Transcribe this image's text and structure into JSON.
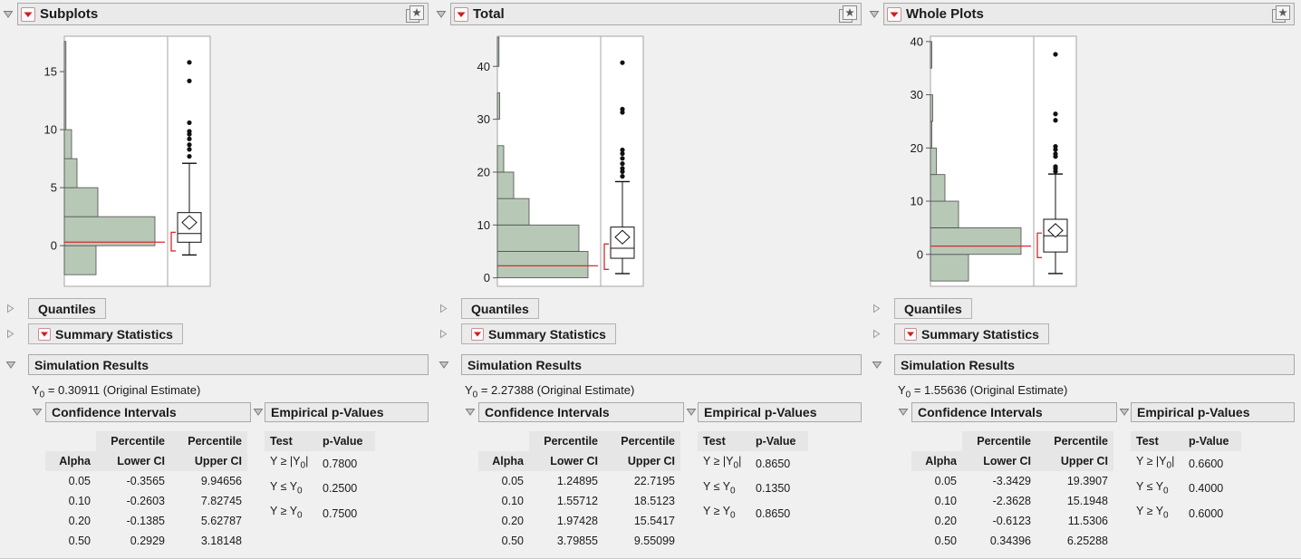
{
  "ui": {
    "y_symbol": "Y",
    "quantiles_label": "Quantiles",
    "summary_statistics_label": "Summary Statistics",
    "simulation_results_label": "Simulation Results",
    "confidence_intervals_label": "Confidence Intervals",
    "empirical_p_values_label": "Empirical p-Values",
    "ci_table": {
      "percentile_label": "Percentile",
      "alpha_header": "Alpha",
      "lower_header": "Lower CI",
      "upper_header": "Upper CI"
    },
    "p_table": {
      "test_header": "Test",
      "p_value_header": "p-Value"
    },
    "icons": {
      "red_triangle_menu": "red-triangle-menu-icon",
      "bookmark_star": "bookmark-star-icon",
      "disclosure_expanded": "chevron-down-icon",
      "disclosure_collapsed": "chevron-right-icon"
    }
  },
  "colors": {
    "background": "#f0f0f0",
    "header_bg": "#eaeaea",
    "header_border": "#a9a9a9",
    "hist_fill": "#b7c8b7",
    "hist_stroke": "#4d4d4d",
    "frame": "#a6a6a6",
    "reference_red": "#d92b2b",
    "box_stroke": "#111111",
    "red_triangle": "#cd1f1f"
  },
  "panels": [
    {
      "title": "Subplots",
      "y0_sub": "0",
      "y0_rest": " = 0.30911 (Original Estimate)",
      "ci_rows": [
        {
          "alpha": "0.05",
          "lower": "-0.3565",
          "upper": "9.94656"
        },
        {
          "alpha": "0.10",
          "lower": "-0.2603",
          "upper": "7.82745"
        },
        {
          "alpha": "0.20",
          "lower": "-0.1385",
          "upper": "5.62787"
        },
        {
          "alpha": "0.50",
          "lower": "0.2929",
          "upper": "3.18148"
        }
      ],
      "p_rows": [
        {
          "prefix": "Y ≥ |Y",
          "sub": "0",
          "suffix": "|",
          "value": "0.7800"
        },
        {
          "prefix": "Y ≤ Y",
          "sub": "0",
          "suffix": "",
          "value": "0.2500"
        },
        {
          "prefix": "Y ≥ Y",
          "sub": "0",
          "suffix": "",
          "value": "0.7500"
        }
      ]
    },
    {
      "title": "Total",
      "y0_sub": "0",
      "y0_rest": " = 2.27388 (Original Estimate)",
      "ci_rows": [
        {
          "alpha": "0.05",
          "lower": "1.24895",
          "upper": "22.7195"
        },
        {
          "alpha": "0.10",
          "lower": "1.55712",
          "upper": "18.5123"
        },
        {
          "alpha": "0.20",
          "lower": "1.97428",
          "upper": "15.5417"
        },
        {
          "alpha": "0.50",
          "lower": "3.79855",
          "upper": "9.55099"
        }
      ],
      "p_rows": [
        {
          "prefix": "Y ≥ |Y",
          "sub": "0",
          "suffix": "|",
          "value": "0.8650"
        },
        {
          "prefix": "Y ≤ Y",
          "sub": "0",
          "suffix": "",
          "value": "0.1350"
        },
        {
          "prefix": "Y ≥ Y",
          "sub": "0",
          "suffix": "",
          "value": "0.8650"
        }
      ]
    },
    {
      "title": "Whole Plots",
      "y0_sub": "0",
      "y0_rest": " = 1.55636 (Original Estimate)",
      "ci_rows": [
        {
          "alpha": "0.05",
          "lower": "-3.3429",
          "upper": "19.3907"
        },
        {
          "alpha": "0.10",
          "lower": "-2.3628",
          "upper": "15.1948"
        },
        {
          "alpha": "0.20",
          "lower": "-0.6123",
          "upper": "11.5306"
        },
        {
          "alpha": "0.50",
          "lower": "0.34396",
          "upper": "6.25288"
        }
      ],
      "p_rows": [
        {
          "prefix": "Y ≥ |Y",
          "sub": "0",
          "suffix": "|",
          "value": "0.6600"
        },
        {
          "prefix": "Y ≤ Y",
          "sub": "0",
          "suffix": "",
          "value": "0.4000"
        },
        {
          "prefix": "Y ≥ Y",
          "sub": "0",
          "suffix": "",
          "value": "0.6000"
        }
      ]
    }
  ],
  "chart_data": [
    {
      "type": "histogram-boxplot",
      "title": "Subplots",
      "orientation": "horizontal-bars",
      "ylim": [
        -3.5,
        18.05
      ],
      "yticks": [
        0,
        5,
        10,
        15
      ],
      "bins": [
        {
          "from": -2.5,
          "to": 0,
          "rel": 0.35
        },
        {
          "from": 0,
          "to": 2.5,
          "rel": 1.0
        },
        {
          "from": 2.5,
          "to": 5,
          "rel": 0.37
        },
        {
          "from": 5,
          "to": 7.5,
          "rel": 0.14
        },
        {
          "from": 7.5,
          "to": 10,
          "rel": 0.08
        },
        {
          "from": 10,
          "to": 17.6,
          "rel": 0.018
        }
      ],
      "reference_line": 0.30911,
      "boxplot": {
        "whisker_low": -0.8,
        "q1": 0.3,
        "median": 1.05,
        "q3": 2.85,
        "whisker_high": 7.1,
        "mean": 2.0,
        "outliers": [
          7.7,
          8.3,
          8.7,
          9.2,
          9.6,
          9.85,
          10.6,
          14.2,
          15.8
        ],
        "shortest_half": [
          -0.45,
          1.15
        ]
      }
    },
    {
      "type": "histogram-boxplot",
      "title": "Total",
      "orientation": "horizontal-bars",
      "ylim": [
        -1.6,
        45.7
      ],
      "yticks": [
        0,
        10,
        20,
        30,
        40
      ],
      "bins": [
        {
          "from": 0,
          "to": 5,
          "rel": 1.0
        },
        {
          "from": 5,
          "to": 10,
          "rel": 0.9
        },
        {
          "from": 10,
          "to": 15,
          "rel": 0.35
        },
        {
          "from": 15,
          "to": 20,
          "rel": 0.18
        },
        {
          "from": 20,
          "to": 25,
          "rel": 0.07
        },
        {
          "from": 30,
          "to": 35,
          "rel": 0.025
        },
        {
          "from": 40,
          "to": 45.5,
          "rel": 0.018
        }
      ],
      "reference_line": 2.27388,
      "boxplot": {
        "whisker_low": 0.8,
        "q1": 3.7,
        "median": 5.6,
        "q3": 9.6,
        "whisker_high": 18.2,
        "mean": 7.7,
        "outliers": [
          19.2,
          20.1,
          20.7,
          21.6,
          22.6,
          23.5,
          24.2,
          31.3,
          31.9,
          40.7
        ],
        "shortest_half": [
          1.6,
          6.4
        ]
      }
    },
    {
      "type": "histogram-boxplot",
      "title": "Whole Plots",
      "orientation": "horizontal-bars",
      "ylim": [
        -6.0,
        41.0
      ],
      "yticks": [
        0,
        10,
        20,
        30,
        40
      ],
      "bins": [
        {
          "from": -5,
          "to": 0,
          "rel": 0.42
        },
        {
          "from": 0,
          "to": 5,
          "rel": 1.0
        },
        {
          "from": 5,
          "to": 10,
          "rel": 0.31
        },
        {
          "from": 10,
          "to": 15,
          "rel": 0.16
        },
        {
          "from": 15,
          "to": 20,
          "rel": 0.065
        },
        {
          "from": 20,
          "to": 25,
          "rel": 0.015
        },
        {
          "from": 25,
          "to": 30,
          "rel": 0.025
        },
        {
          "from": 35,
          "to": 40,
          "rel": 0.015
        }
      ],
      "reference_line": 1.55636,
      "boxplot": {
        "whisker_low": -3.6,
        "q1": 0.45,
        "median": 3.5,
        "q3": 6.6,
        "whisker_high": 15.1,
        "mean": 4.5,
        "outliers": [
          15.6,
          16.1,
          16.5,
          18.4,
          18.9,
          19.7,
          20.3,
          25.2,
          26.4,
          37.6
        ],
        "shortest_half": [
          -0.6,
          4.0
        ]
      }
    }
  ]
}
